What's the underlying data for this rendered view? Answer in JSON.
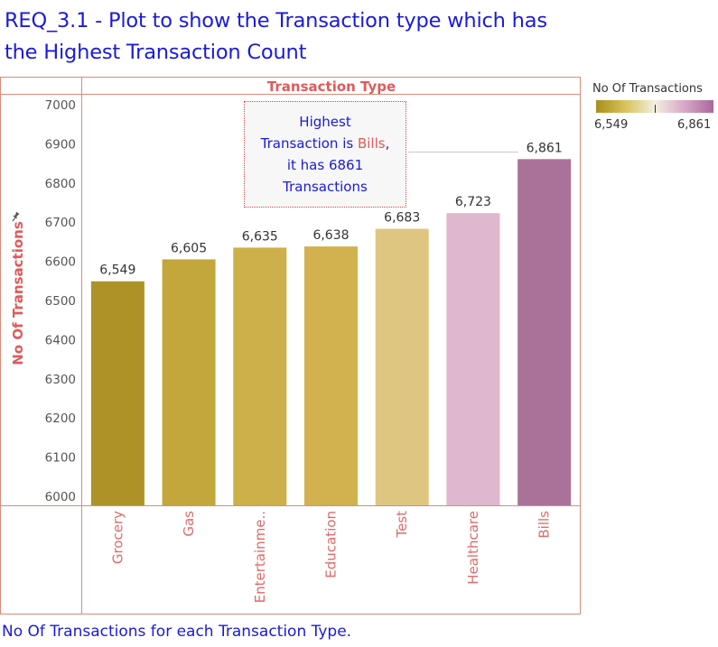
{
  "title": "REQ_3.1 - Plot to show the Transaction type which has the Highest Transaction Count",
  "header": "Transaction Type",
  "ylabel": "No Of Transactions",
  "legend": {
    "title": "No Of Transactions",
    "min_label": "6,549",
    "max_label": "6,861",
    "colors": [
      "#a88e1e",
      "#d8c45a",
      "#f2efe0",
      "#d9a8c8",
      "#a8679a"
    ]
  },
  "annotation": {
    "line1": "Highest",
    "line2_prefix": "Transaction is ",
    "line2_highlight": "Bills",
    "line2_suffix": ",",
    "line3": "it has 6861",
    "line4": "Transactions"
  },
  "footer": "No Of Transactions for each Transaction Type.",
  "chart_data": {
    "type": "bar",
    "categories": [
      "Grocery",
      "Gas",
      "Entertainme..",
      "Education",
      "Test",
      "Healthcare",
      "Bills"
    ],
    "values": [
      6549,
      6605,
      6635,
      6638,
      6683,
      6723,
      6861
    ],
    "value_labels": [
      "6,549",
      "6,605",
      "6,635",
      "6,638",
      "6,683",
      "6,723",
      "6,861"
    ],
    "colors": [
      "#ad9327",
      "#c4a73c",
      "#cdb04a",
      "#d1b24f",
      "#dfc680",
      "#dfb8cd",
      "#ab7299"
    ],
    "xlabel": "Transaction Type",
    "ylabel": "No Of Transactions",
    "ylim": [
      6000,
      7000
    ],
    "yticks": [
      6000,
      6100,
      6200,
      6300,
      6400,
      6500,
      6600,
      6700,
      6800,
      6900,
      7000
    ],
    "grid": false,
    "legend_position": "top-right"
  }
}
